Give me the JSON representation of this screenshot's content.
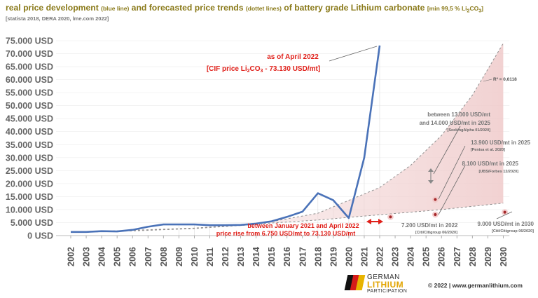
{
  "title": {
    "part1": "real price development ",
    "part2": "(blue line)",
    "part3": " and forecasted price trends ",
    "part4": "(dottet lines)",
    "part5": " of battery grade Lithium carbonate ",
    "part6": "[min 99,5 % Li",
    "sub2": "2",
    "part7": "CO",
    "sub3": "3",
    "part8": "]"
  },
  "subtitle": "[statista 2018, DERA 2020, lme.com 2022]",
  "footer": "© 2022 | www.germanlithium.com",
  "logo": {
    "line1": "GERMAN",
    "line2": "LITHIUM",
    "line3": "PARTICIPATION"
  },
  "colors": {
    "title": "#8a7a1a",
    "line": "#4a72b8",
    "annotation_red": "#e0201a",
    "forecast_fill": "#f3dada",
    "forecast_line": "#999999"
  },
  "chart_data": {
    "type": "line",
    "title": "real price development and forecasted price trends of battery grade Lithium carbonate",
    "xlabel": "",
    "ylabel": "USD/mt",
    "ylim": [
      0,
      75000
    ],
    "y_ticks": [
      0,
      5000,
      10000,
      15000,
      20000,
      25000,
      30000,
      35000,
      40000,
      45000,
      50000,
      55000,
      60000,
      65000,
      70000,
      75000
    ],
    "y_tick_labels": [
      "0 USD",
      "5.000 USD",
      "10.000 USD",
      "15.000 USD",
      "20.000 USD",
      "25.000 USD",
      "30.000 USD",
      "35.000 USD",
      "40.000 USD",
      "45.000 USD",
      "50.000 USD",
      "55.000 USD",
      "60.000 USD",
      "65.000 USD",
      "70.000 USD",
      "75.000 USD"
    ],
    "categories": [
      "2002",
      "2003",
      "2004",
      "2005",
      "2006",
      "2007",
      "2008",
      "2009",
      "2010",
      "2011",
      "2012",
      "2013",
      "2014",
      "2015",
      "2016",
      "2017",
      "2018",
      "2019",
      "2020",
      "2021",
      "2022",
      "2023",
      "2024",
      "2025",
      "2026",
      "2027",
      "2028",
      "2029",
      "2030"
    ],
    "series": [
      {
        "name": "real price development",
        "x": [
          2002,
          2003,
          2004,
          2005,
          2006,
          2007,
          2008,
          2009,
          2010,
          2011,
          2012,
          2013,
          2014,
          2015,
          2016,
          2017,
          2018,
          2019,
          2020,
          2021,
          2022
        ],
        "values": [
          1400,
          1400,
          1700,
          1600,
          2200,
          3400,
          4300,
          4300,
          4300,
          4000,
          4000,
          4100,
          4600,
          5500,
          7200,
          9200,
          16300,
          13600,
          6750,
          30000,
          73130
        ]
      },
      {
        "name": "upper forecast trend",
        "x": [
          2002,
          2006,
          2010,
          2014,
          2018,
          2022,
          2024,
          2026,
          2028,
          2030
        ],
        "values": [
          1200,
          1800,
          2700,
          4300,
          8600,
          18500,
          27000,
          38500,
          54000,
          74000
        ]
      },
      {
        "name": "lower forecast trend",
        "x": [
          2002,
          2010,
          2018,
          2022,
          2026,
          2030
        ],
        "values": [
          1200,
          2900,
          6000,
          8000,
          10000,
          12500
        ]
      }
    ],
    "forecast_points": [
      {
        "label": "13.000–14.000 USD/mt in 2025",
        "x": 2025.6,
        "y": 13800
      },
      {
        "label": "13.900 USD/mt in 2025",
        "x": 2025.6,
        "y": 13900
      },
      {
        "label": "8.100 USD/mt in 2025",
        "x": 2025.6,
        "y": 8100
      },
      {
        "label": "7.200 USD/mt in 2022",
        "x": 2022.7,
        "y": 7200
      },
      {
        "label": "9.000 USD/mt in 2030",
        "x": 2030.1,
        "y": 9000
      }
    ],
    "r_squared": "R² = 0,6118"
  },
  "annotations": {
    "april_line1": "as of April 2022",
    "april_line2_a": "[CIF price Li",
    "april_sub2": "2",
    "april_line2_b": "CO",
    "april_sub3": "3",
    "april_line2_c": " - 73.130 USD/mt]",
    "rise_line1": "between January 2021 and April 2022",
    "rise_line2": "price rise from 6.750 USD/mt to 73.130 USD/mt",
    "r2": "R² = 0,6118",
    "f1_line1": "between 13.000 USD/mt",
    "f1_line2": "and 14.000 USD/mt in 2025",
    "f1_src": "[SeekingAlpha 01/2020]",
    "f2_line1": "13.900 USD/mt in 2025",
    "f2_src": "[Penisa et al. 2020]",
    "f3_line1": "8.100 USD/mt in 2025",
    "f3_src": "[UBS/Forbes 12/2020]",
    "f4_line1": "7.200 USD/mt in 2022",
    "f4_src": "[Citi/Citigroup 06/2020]",
    "f5_line1": "9.000 USD/mt in 2030",
    "f5_src": "[Citi/Citigroup 06/2020]"
  }
}
